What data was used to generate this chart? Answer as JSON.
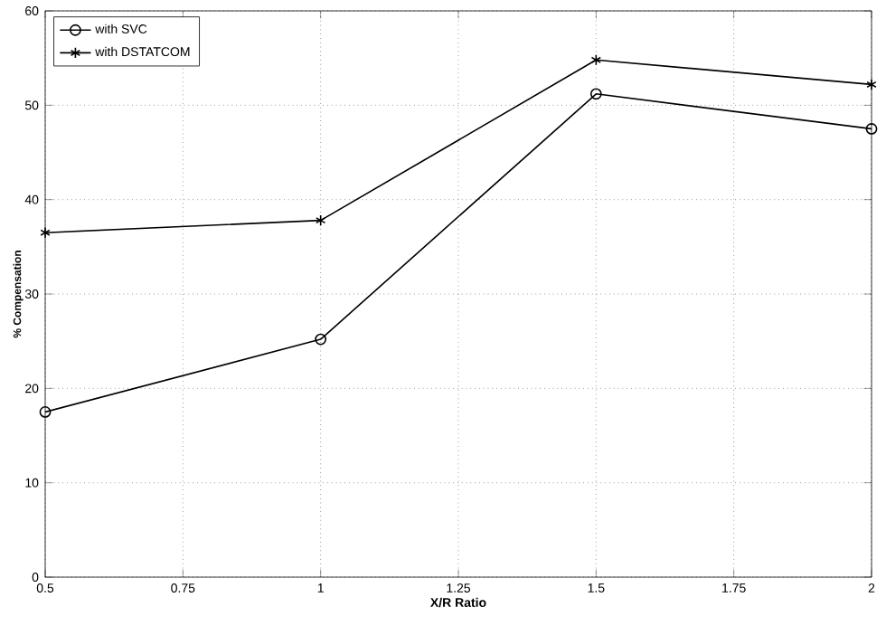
{
  "chart_data": {
    "type": "line",
    "xlabel": "X/R Ratio",
    "ylabel": "% Compensation",
    "x": [
      0.5,
      1,
      1.5,
      2
    ],
    "series": [
      {
        "name": "with SVC",
        "color": "#000000",
        "marker": "circle",
        "values": [
          17.5,
          25.2,
          51.2,
          47.5
        ]
      },
      {
        "name": "with DSTATCOM",
        "color": "#000000",
        "marker": "cross",
        "values": [
          36.5,
          37.8,
          54.8,
          52.2
        ]
      }
    ],
    "xlim": [
      0.5,
      2
    ],
    "xticks": [
      0.5,
      0.75,
      1,
      1.25,
      1.5,
      1.75,
      2
    ],
    "ylim": [
      0,
      60
    ],
    "yticks": [
      0,
      10,
      20,
      30,
      40,
      50,
      60
    ],
    "grid": true,
    "legend": "top left",
    "line_style": "solid"
  }
}
